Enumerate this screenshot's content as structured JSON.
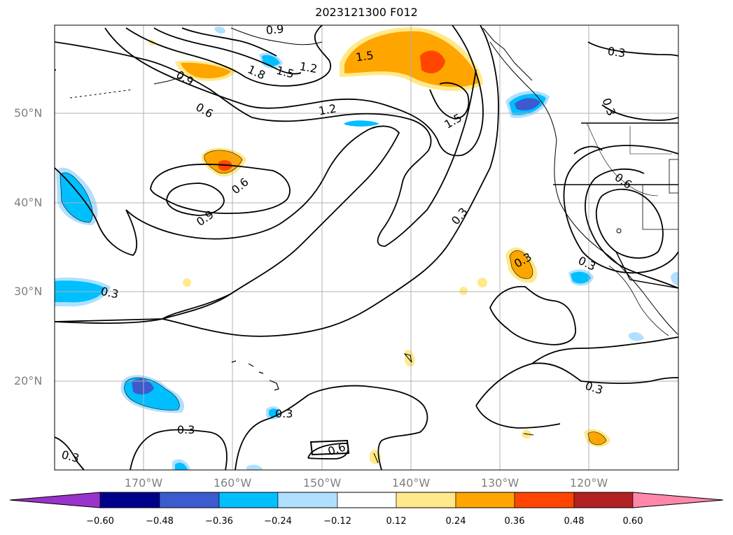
{
  "figure": {
    "title": "2023121300 F012",
    "lat_ticks": [
      {
        "value": 20,
        "label": "20°N"
      },
      {
        "value": 30,
        "label": "30°N"
      },
      {
        "value": 40,
        "label": "40°N"
      },
      {
        "value": 50,
        "label": "50°N"
      }
    ],
    "lon_ticks": [
      {
        "value": -170,
        "label": "170°W"
      },
      {
        "value": -160,
        "label": "160°W"
      },
      {
        "value": -150,
        "label": "150°W"
      },
      {
        "value": -140,
        "label": "140°W"
      },
      {
        "value": -130,
        "label": "130°W"
      },
      {
        "value": -120,
        "label": "120°W"
      }
    ],
    "contour_labels": [
      "0.3",
      "0.6",
      "0.9",
      "1.2",
      "1.5",
      "1.8"
    ],
    "colorbar": {
      "tick_labels": [
        "−0.60",
        "−0.48",
        "−0.36",
        "−0.24",
        "−0.12",
        "0.12",
        "0.24",
        "0.36",
        "0.48",
        "0.60"
      ],
      "colors": [
        "#9933cc",
        "#00008b",
        "#3b5bcf",
        "#00bfff",
        "#b0e0ff",
        "#ffffff",
        "#ffe98a",
        "#ffa500",
        "#ff4500",
        "#b22222",
        "#ff88aa"
      ]
    }
  }
}
